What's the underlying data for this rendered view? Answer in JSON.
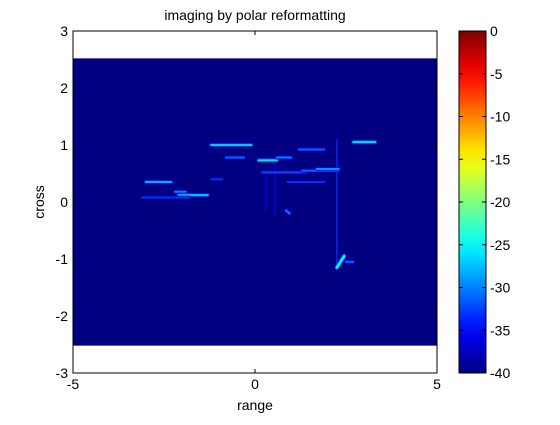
{
  "chart_data": {
    "type": "heatmap",
    "title": "imaging by polar reformatting",
    "xlabel": "range",
    "ylabel": "cross",
    "xlim": [
      -5,
      5
    ],
    "ylim": [
      -3,
      3
    ],
    "xticks": [
      {
        "value": -5,
        "label": "-5"
      },
      {
        "value": 0,
        "label": "0"
      },
      {
        "value": 5,
        "label": "5"
      }
    ],
    "yticks": [
      {
        "value": 3,
        "label": "3"
      },
      {
        "value": 2,
        "label": "2"
      },
      {
        "value": 1,
        "label": "1"
      },
      {
        "value": 0,
        "label": "0"
      },
      {
        "value": -1,
        "label": "-1"
      },
      {
        "value": -2,
        "label": "-2"
      },
      {
        "value": -3,
        "label": "-3"
      }
    ],
    "image_extent": {
      "x": [
        -5,
        5
      ],
      "y": [
        -2.52,
        2.52
      ]
    },
    "background_level": -40,
    "grid": false,
    "colorbar": {
      "position": "right",
      "colormap": "jet",
      "range": [
        -40,
        0
      ],
      "ticks": [
        {
          "value": 0,
          "label": "0"
        },
        {
          "value": -5,
          "label": "-5"
        },
        {
          "value": -10,
          "label": "-10"
        },
        {
          "value": -15,
          "label": "-15"
        },
        {
          "value": -20,
          "label": "-20"
        },
        {
          "value": -25,
          "label": "-25"
        },
        {
          "value": -30,
          "label": "-30"
        },
        {
          "value": -35,
          "label": "-35"
        },
        {
          "value": -40,
          "label": "-40"
        }
      ]
    },
    "streaks": [
      {
        "x": [
          -1.2,
          -0.1
        ],
        "y": [
          1.0,
          1.0
        ],
        "level": -27
      },
      {
        "x": [
          -0.8,
          -0.3
        ],
        "y": [
          0.78,
          0.78
        ],
        "level": -31
      },
      {
        "x": [
          0.1,
          0.6
        ],
        "y": [
          0.73,
          0.73
        ],
        "level": -26
      },
      {
        "x": [
          0.6,
          1.0
        ],
        "y": [
          0.78,
          0.78
        ],
        "level": -30
      },
      {
        "x": [
          1.2,
          1.9
        ],
        "y": [
          0.92,
          0.92
        ],
        "level": -31
      },
      {
        "x": [
          2.7,
          3.3
        ],
        "y": [
          1.05,
          1.05
        ],
        "level": -26
      },
      {
        "x": [
          -3.0,
          -2.3
        ],
        "y": [
          0.35,
          0.35
        ],
        "level": -28
      },
      {
        "x": [
          -2.2,
          -1.9
        ],
        "y": [
          0.18,
          0.18
        ],
        "level": -30
      },
      {
        "x": [
          -2.1,
          -1.3
        ],
        "y": [
          0.12,
          0.12
        ],
        "level": -27
      },
      {
        "x": [
          -3.1,
          -1.8
        ],
        "y": [
          0.08,
          0.08
        ],
        "level": -33
      },
      {
        "x": [
          0.2,
          1.4
        ],
        "y": [
          0.52,
          0.52
        ],
        "level": -32
      },
      {
        "x": [
          1.3,
          2.3
        ],
        "y": [
          0.55,
          0.55
        ],
        "level": -31
      },
      {
        "x": [
          1.7,
          2.3
        ],
        "y": [
          0.58,
          0.58
        ],
        "level": -29
      },
      {
        "x": [
          0.9,
          1.9
        ],
        "y": [
          0.35,
          0.35
        ],
        "level": -33
      },
      {
        "x": [
          -1.2,
          -0.9
        ],
        "y": [
          0.4,
          0.4
        ],
        "level": -33
      }
    ],
    "bright_features": [
      {
        "x": [
          2.25,
          2.45
        ],
        "y": [
          -1.15,
          -0.95
        ],
        "level": -24
      },
      {
        "x": [
          2.5,
          2.7
        ],
        "y": [
          -1.05,
          -1.05
        ],
        "level": -31
      },
      {
        "x": [
          0.85,
          0.95
        ],
        "y": [
          -0.15,
          -0.2
        ],
        "level": -30
      }
    ],
    "vertical_lines": [
      {
        "x": 2.25,
        "y": [
          -1.15,
          1.1
        ],
        "level": -33
      },
      {
        "x": 0.55,
        "y": [
          -0.25,
          0.75
        ],
        "level": -35
      },
      {
        "x": 0.3,
        "y": [
          -0.15,
          0.5
        ],
        "level": -35
      }
    ]
  }
}
